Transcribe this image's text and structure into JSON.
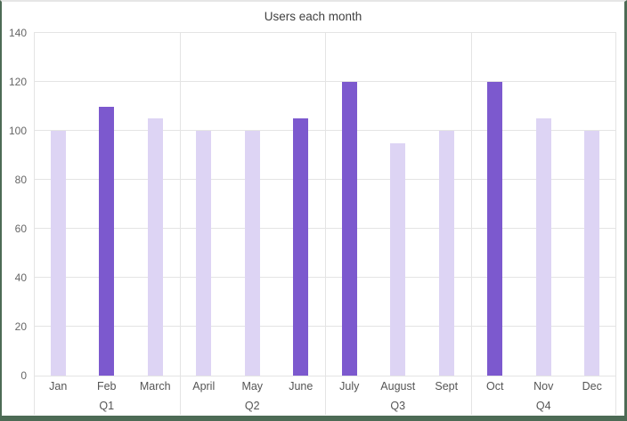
{
  "chart_data": {
    "type": "bar",
    "title": "Users each month",
    "categories": [
      "Jan",
      "Feb",
      "March",
      "April",
      "May",
      "June",
      "July",
      "August",
      "Sept",
      "Oct",
      "Nov",
      "Dec"
    ],
    "values": [
      100,
      110,
      105,
      100,
      100,
      105,
      120,
      95,
      100,
      120,
      105,
      100
    ],
    "highlighted_categories": [
      "Feb",
      "June",
      "July",
      "Oct"
    ],
    "groups": [
      {
        "label": "Q1",
        "bars": [
          {
            "month": "Jan",
            "value": 100,
            "highlight": false
          },
          {
            "month": "Feb",
            "value": 110,
            "highlight": true
          },
          {
            "month": "March",
            "value": 105,
            "highlight": false
          }
        ]
      },
      {
        "label": "Q2",
        "bars": [
          {
            "month": "April",
            "value": 100,
            "highlight": false
          },
          {
            "month": "May",
            "value": 100,
            "highlight": false
          },
          {
            "month": "June",
            "value": 105,
            "highlight": true
          }
        ]
      },
      {
        "label": "Q3",
        "bars": [
          {
            "month": "July",
            "value": 120,
            "highlight": true
          },
          {
            "month": "August",
            "value": 95,
            "highlight": false
          },
          {
            "month": "Sept",
            "value": 100,
            "highlight": false
          }
        ]
      },
      {
        "label": "Q4",
        "bars": [
          {
            "month": "Oct",
            "value": 120,
            "highlight": true
          },
          {
            "month": "Nov",
            "value": 105,
            "highlight": false
          },
          {
            "month": "Dec",
            "value": 100,
            "highlight": false
          }
        ]
      }
    ],
    "xlabel": "",
    "ylabel": "",
    "ylim": [
      0,
      140
    ],
    "yticks": [
      0,
      20,
      40,
      60,
      80,
      100,
      120,
      140
    ],
    "grid": true,
    "legend": "none",
    "colors": {
      "bar_light": "#DDD4F4",
      "bar_dark": "#7C59CE",
      "frame_border": "#4D6B55",
      "gridline": "#E4E4E4",
      "title_text": "#404040",
      "axis_text": "#666666",
      "label_text": "#555555"
    }
  }
}
